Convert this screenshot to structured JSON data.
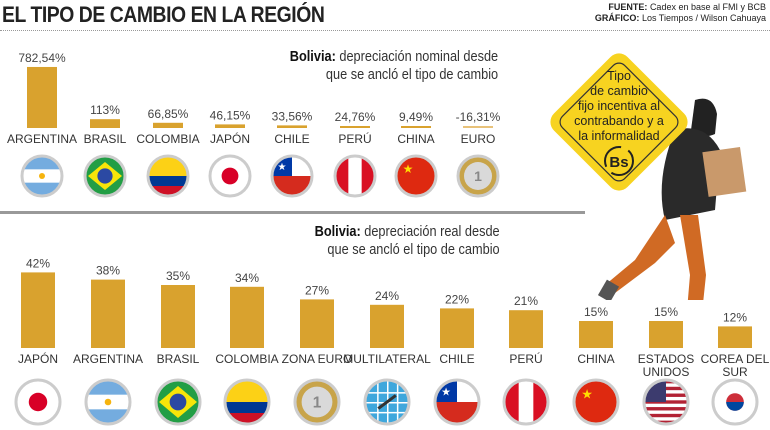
{
  "header": {
    "title": "EL TIPO DE CAMBIO EN LA REGIÓN",
    "source_label": "FUENTE:",
    "source": "Cadex en base al FMI y BCB",
    "graphic_label": "GRÁFICO:",
    "graphic": "Los Tiempos / Wilson Cahuaya"
  },
  "sign": {
    "lines": [
      "Tipo",
      "de cambio",
      "fijo incentiva al",
      "contrabando y a",
      "la informalidad"
    ],
    "currency": "Bs"
  },
  "colors": {
    "bar": "#d9a22e",
    "divider": "#999999",
    "sign": "#f7d320"
  },
  "chart_data": [
    {
      "type": "bar",
      "title_bold": "Bolivia:",
      "title": "depreciación nominal desde",
      "title2": "que se ancló el tipo de cambio",
      "unit": "%",
      "categories": [
        "ARGENTINA",
        "BRASIL",
        "COLOMBIA",
        "JAPÓN",
        "CHILE",
        "PERÚ",
        "CHINA",
        "EURO"
      ],
      "values": [
        782.54,
        113,
        66.85,
        46.15,
        33.56,
        24.76,
        9.49,
        -16.31
      ],
      "labels": [
        "782,54%",
        "113%",
        "66,85%",
        "46,15%",
        "33,56%",
        "24,76%",
        "9,49%",
        "-16,31%"
      ],
      "flags": [
        "argentina",
        "brazil",
        "colombia",
        "japan",
        "chile",
        "peru",
        "china",
        "euro"
      ]
    },
    {
      "type": "bar",
      "title_bold": "Bolivia:",
      "title": "depreciación real desde",
      "title2": "que se ancló el tipo de cambio",
      "unit": "%",
      "categories": [
        "JAPÓN",
        "ARGENTINA",
        "BRASIL",
        "COLOMBIA",
        "ZONA EURO",
        "MULTILATERAL",
        "CHILE",
        "PERÚ",
        "CHINA",
        "ESTADOS UNIDOS",
        "COREA DEL SUR"
      ],
      "values": [
        42,
        38,
        35,
        34,
        27,
        24,
        22,
        21,
        15,
        15,
        12
      ],
      "labels": [
        "42%",
        "38%",
        "35%",
        "34%",
        "27%",
        "24%",
        "22%",
        "21%",
        "15%",
        "15%",
        "12%"
      ],
      "flags": [
        "japan",
        "argentina",
        "brazil",
        "colombia",
        "euro",
        "multilateral",
        "chile",
        "peru",
        "china",
        "usa",
        "korea"
      ]
    }
  ]
}
